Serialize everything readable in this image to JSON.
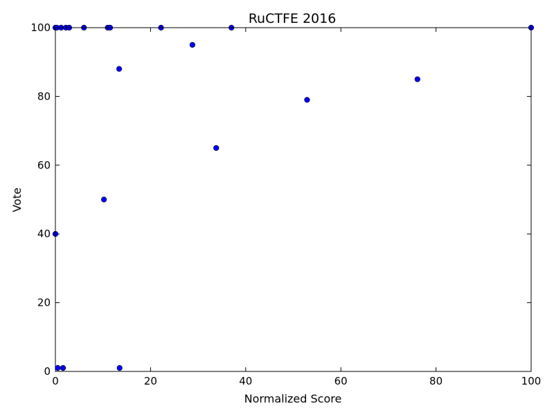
{
  "chart_data": {
    "type": "scatter",
    "title": "RuCTFE 2016",
    "xlabel": "Normalized Score",
    "ylabel": "Vote",
    "xlim": [
      0,
      100
    ],
    "ylim": [
      0,
      100
    ],
    "x_ticks": [
      "0",
      "20",
      "40",
      "60",
      "80",
      "100"
    ],
    "y_ticks": [
      "0",
      "20",
      "40",
      "60",
      "80",
      "100"
    ],
    "grid": false,
    "marker_color": "#0000ff",
    "series": [
      {
        "points": [
          {
            "x": 0,
            "y": 100
          },
          {
            "x": 0.3,
            "y": 100
          },
          {
            "x": 1.2,
            "y": 100
          },
          {
            "x": 2.2,
            "y": 100
          },
          {
            "x": 2.9,
            "y": 100
          },
          {
            "x": 6.0,
            "y": 100
          },
          {
            "x": 11.0,
            "y": 100
          },
          {
            "x": 11.5,
            "y": 100
          },
          {
            "x": 22.2,
            "y": 100
          },
          {
            "x": 37.0,
            "y": 100
          },
          {
            "x": 100,
            "y": 100
          },
          {
            "x": 28.8,
            "y": 95
          },
          {
            "x": 13.4,
            "y": 88
          },
          {
            "x": 76.1,
            "y": 85
          },
          {
            "x": 52.9,
            "y": 79
          },
          {
            "x": 33.8,
            "y": 65
          },
          {
            "x": 10.2,
            "y": 50
          },
          {
            "x": 0,
            "y": 40
          },
          {
            "x": 0.5,
            "y": 1
          },
          {
            "x": 1.6,
            "y": 1
          },
          {
            "x": 13.5,
            "y": 1
          }
        ]
      }
    ]
  }
}
